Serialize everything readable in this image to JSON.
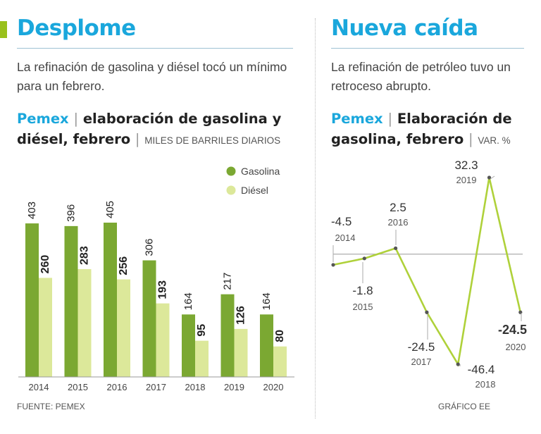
{
  "left": {
    "title": "Desplome",
    "subtitle": "La refinación de gasolina y diésel tocó un mínimo para un febrero.",
    "chart_brand": "Pemex",
    "chart_title": "elaboración de gasolina y diésel, febrero",
    "chart_unit": "MILES DE BARRILES DIARIOS",
    "source": "FUENTE: PEMEX"
  },
  "right": {
    "title": "Nueva caída",
    "subtitle": "La refinación de petróleo tuvo un retroceso abrupto.",
    "chart_brand": "Pemex",
    "chart_title": "Elaboración de gasolina, febrero",
    "chart_unit": "VAR. %",
    "credit": "GRÁFICO EE"
  },
  "separator": "|",
  "colors": {
    "title": "#1aa7dc",
    "gasolina": "#7ba832",
    "diesel": "#dce89a",
    "line": "#afd13a",
    "accent": "#99c11c"
  },
  "chart_data": [
    {
      "type": "bar",
      "title": "elaboración de gasolina y diésel, febrero",
      "ylabel": "MILES DE BARRILES DIARIOS",
      "categories": [
        "2014",
        "2015",
        "2016",
        "2017",
        "2018",
        "2019",
        "2020"
      ],
      "series": [
        {
          "name": "Gasolina",
          "values": [
            403,
            396,
            405,
            306,
            164,
            217,
            164
          ]
        },
        {
          "name": "Diésel",
          "values": [
            260,
            283,
            256,
            193,
            95,
            126,
            80
          ]
        }
      ],
      "ylim": [
        0,
        405
      ],
      "legend": "top-right",
      "grid": false
    },
    {
      "type": "line",
      "title": "Elaboración de gasolina, febrero",
      "ylabel": "VAR. %",
      "x": [
        "2014",
        "2015",
        "2016",
        "2017",
        "2018",
        "2019",
        "2020"
      ],
      "series": [
        {
          "name": "Variación",
          "values": [
            -4.5,
            -1.8,
            2.5,
            -24.5,
            -46.4,
            32.3,
            -24.5
          ]
        }
      ],
      "labels": [
        "-4.5",
        "-1.8",
        "2.5",
        "-24.5",
        "-46.4",
        "32.3",
        "-24.5"
      ],
      "emphasized_index": 6,
      "ylim": [
        -46.4,
        32.3
      ],
      "legend": "none",
      "grid": false
    }
  ]
}
